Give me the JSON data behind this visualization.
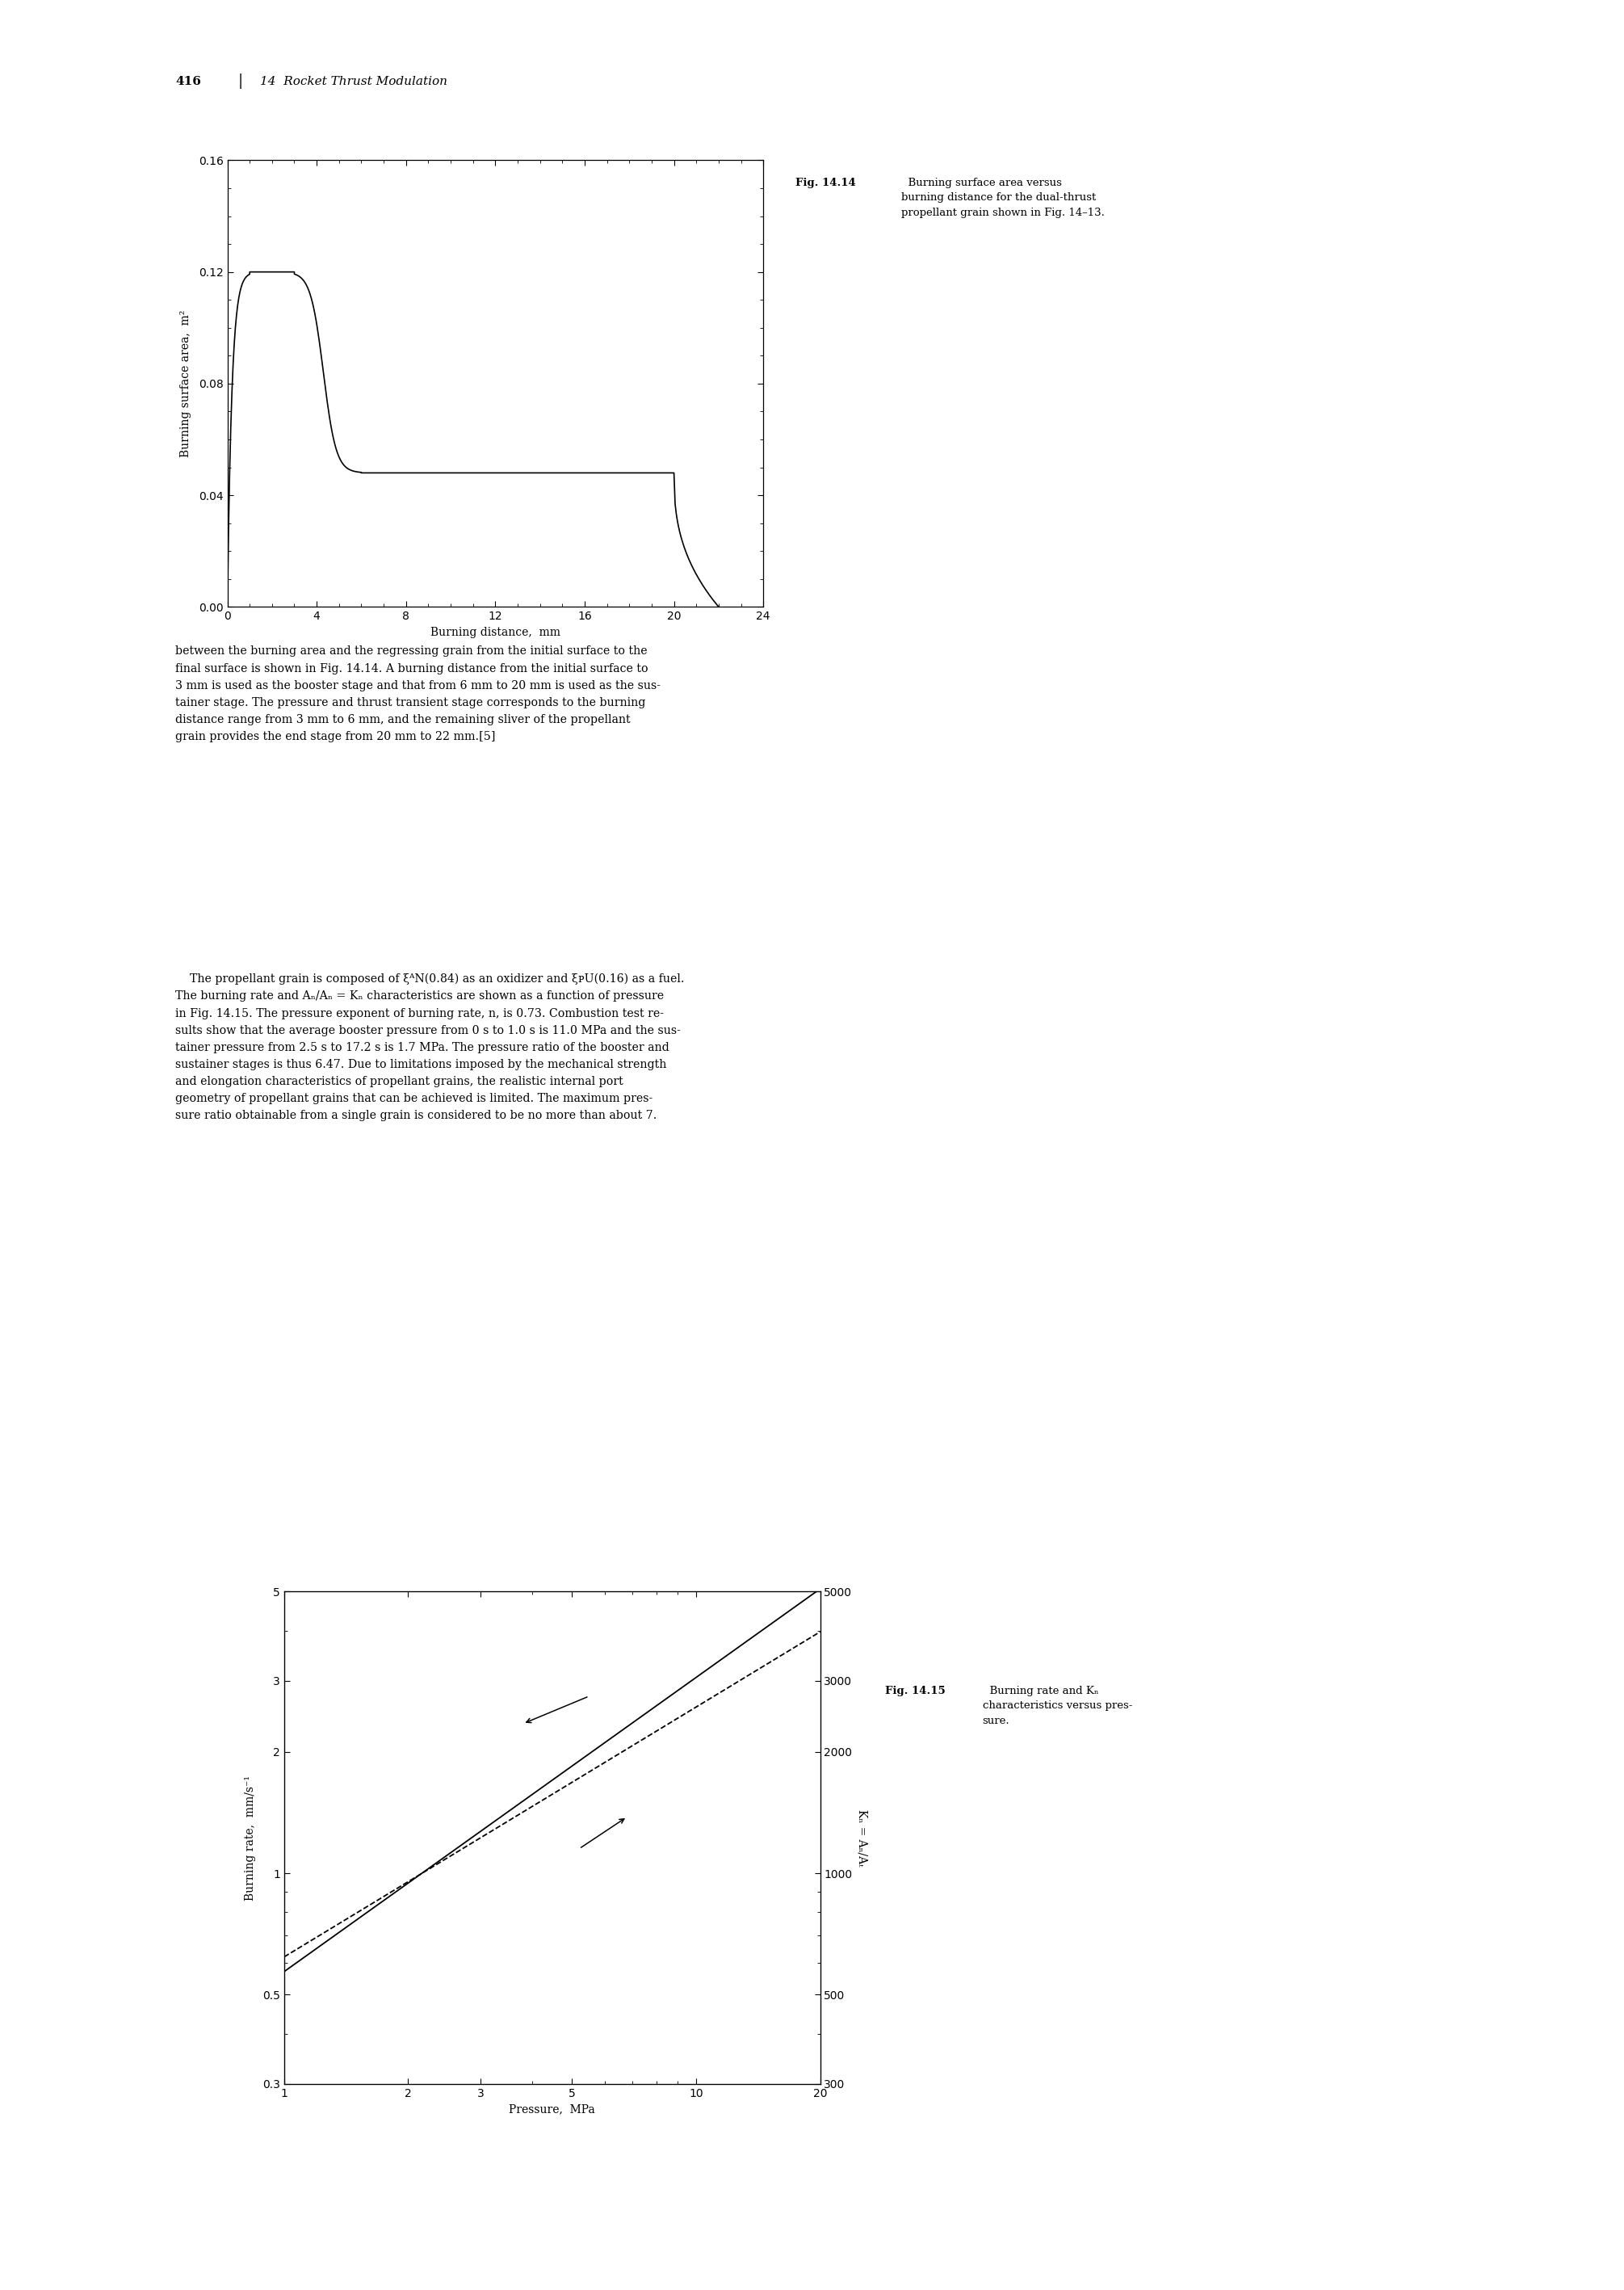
{
  "page_width": 20.11,
  "page_height": 28.35,
  "background_color": "#ffffff",
  "header_page_num": "416",
  "header_sep": "|",
  "header_chapter": "14  Rocket Thrust Modulation",
  "fig1414_caption_bold": "Fig. 14.14",
  "fig1414_caption_rest": "  Burning surface area versus\nburning distance for the dual-thrust\npropellant grain shown in Fig. 14–13.",
  "fig1414_xlabel": "Burning distance,  mm",
  "fig1414_ylabel": "Burning surface area,  m²",
  "fig1414_xlim": [
    0,
    24
  ],
  "fig1414_ylim": [
    0,
    0.16
  ],
  "fig1414_xticks": [
    0,
    4,
    8,
    12,
    16,
    20,
    24
  ],
  "fig1414_yticks": [
    0,
    0.04,
    0.08,
    0.12,
    0.16
  ],
  "fig1415_caption_bold": "Fig. 14.15",
  "fig1415_caption_rest": "  Burning rate and Kₙ\ncharacteristics versus pres-\nsure.",
  "fig1415_xlabel": "Pressure,  MPa",
  "fig1415_ylabel_left": "Burning rate,  mm/s⁻¹",
  "fig1415_ylabel_right": "Kₙ = Aₙ/Aₜ",
  "paragraph1": "between the burning area and the regressing grain from the initial surface to the\nfinal surface is shown in Fig. 14.14. A burning distance from the initial surface to\n3 mm is used as the booster stage and that from 6 mm to 20 mm is used as the sus-\ntainer stage. The pressure and thrust transient stage corresponds to the burning\ndistance range from 3 mm to 6 mm, and the remaining sliver of the propellant\ngrain provides the end stage from 20 mm to 22 mm.[5]",
  "paragraph2_indent": "    The propellant grain is composed of ξᴬN(0.84) as an oxidizer and ξᴘU(0.16) as a fuel.\nThe burning rate and Aₙ/Aₙ = Kₙ characteristics are shown as a function of pressure\nin Fig. 14.15. The pressure exponent of burning rate, n, is 0.73. Combustion test re-\nsults show that the average booster pressure from 0 s to 1.0 s is 11.0 MPa and the sus-\ntainer pressure from 2.5 s to 17.2 s is 1.7 MPa. The pressure ratio of the booster and\nsustainer stages is thus 6.47. Due to limitations imposed by the mechanical strength\nand elongation characteristics of propellant grains, the realistic internal port\ngeometry of propellant grains that can be achieved is limited. The maximum pres-\nsure ratio obtainable from a single grain is considered to be no more than about 7."
}
